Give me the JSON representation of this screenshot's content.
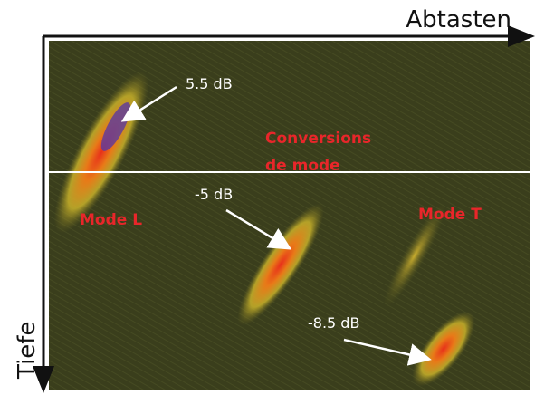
{
  "axes": {
    "horizontal": "Abtasten",
    "vertical": "Tiefe"
  },
  "annotations": {
    "top_echo": "5.5 dB",
    "middle_echo": "-5 dB",
    "bottom_echo": "-8.5 dB",
    "conversions": [
      "Conversions",
      "de mode"
    ],
    "mode_l": "Mode L",
    "mode_t": "Mode T"
  }
}
